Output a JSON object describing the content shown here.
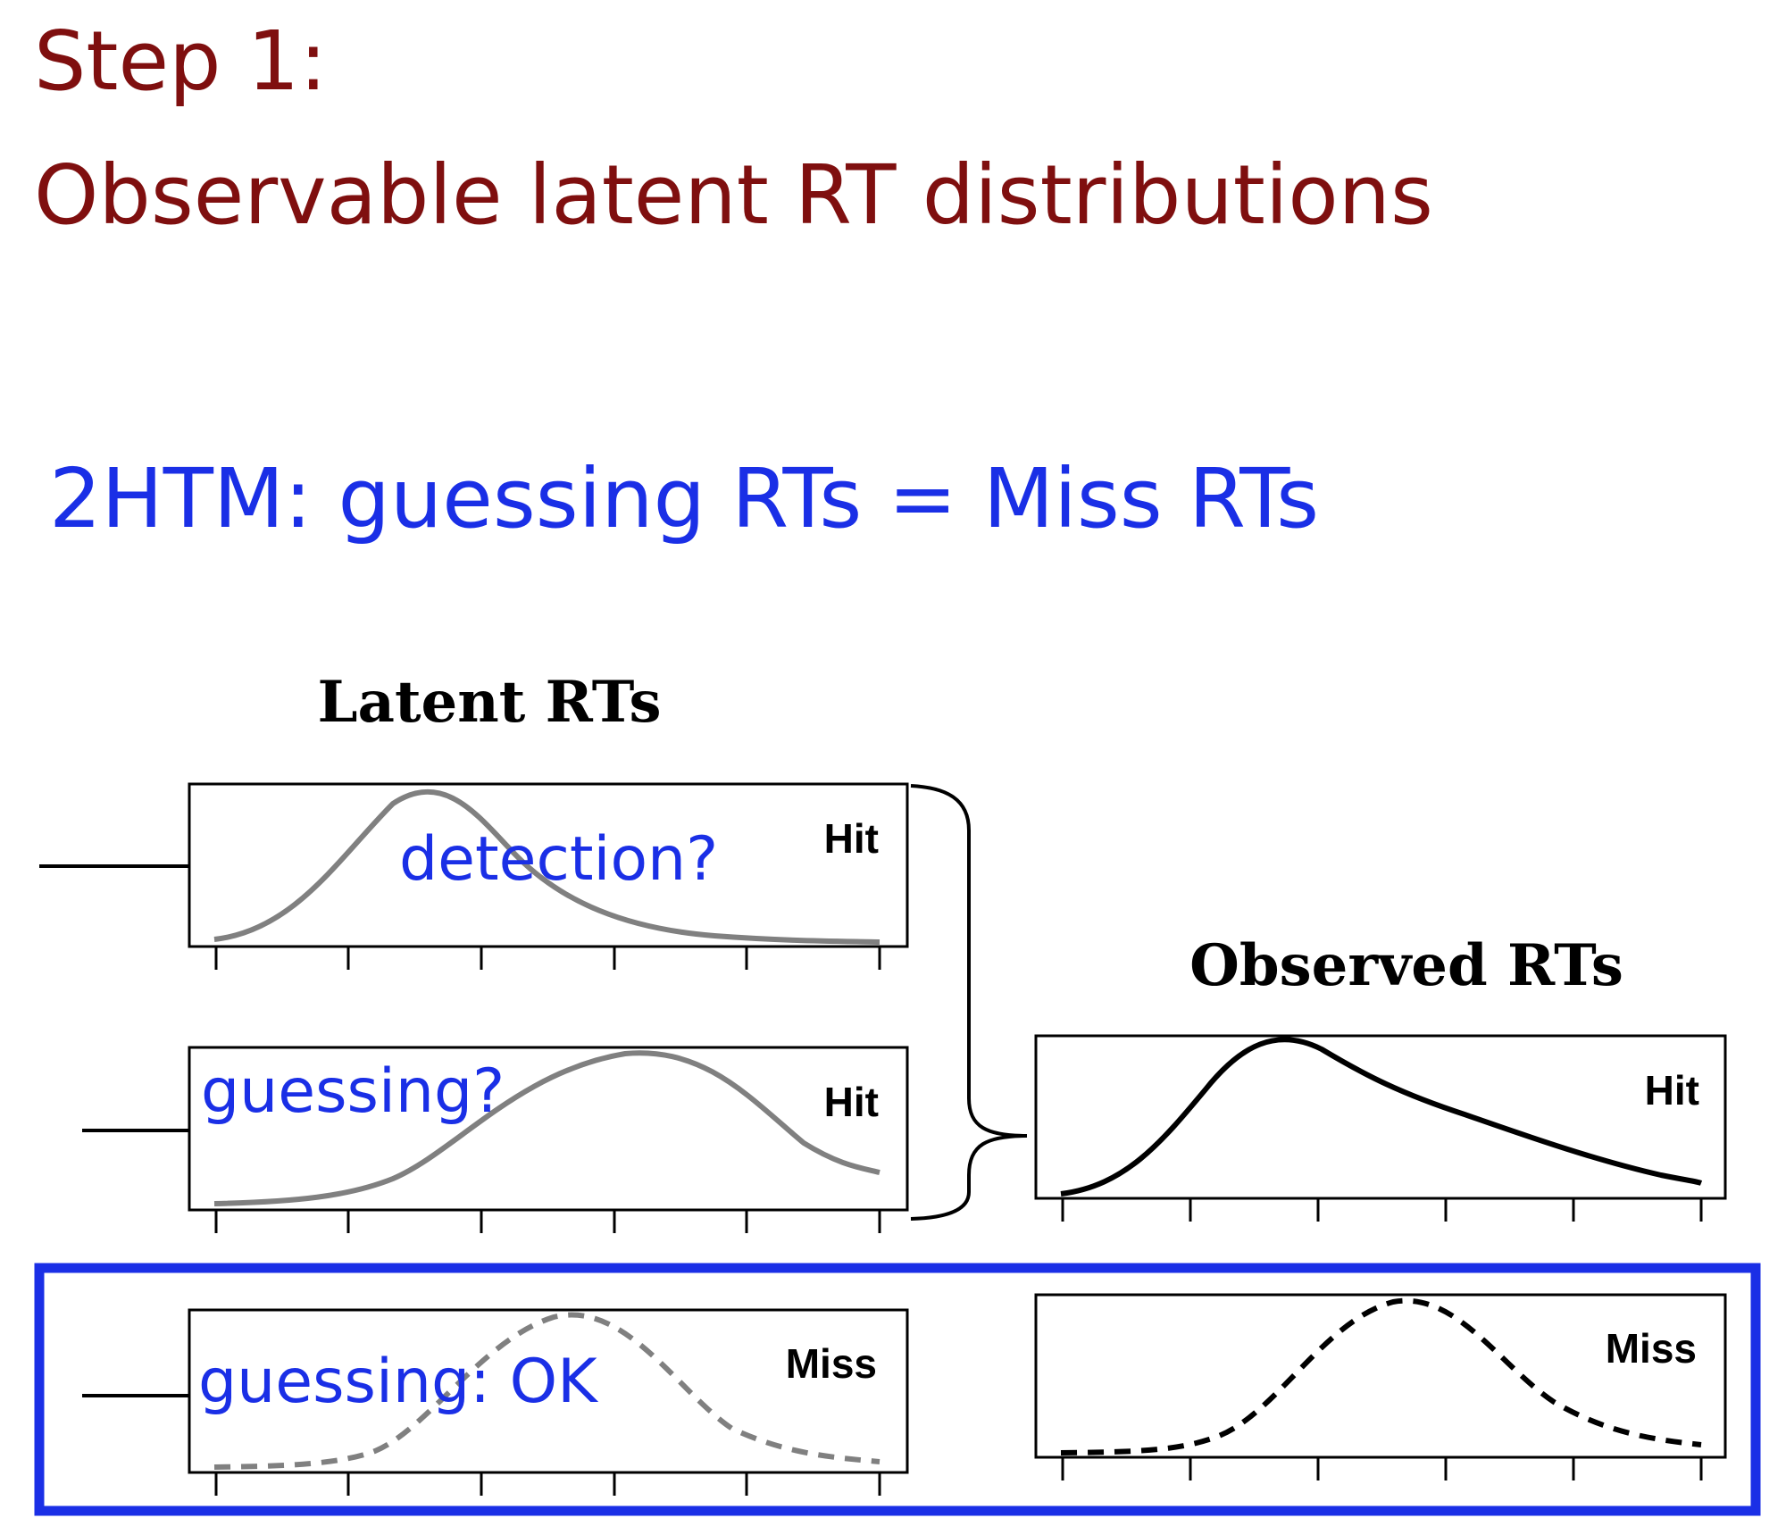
{
  "slide": {
    "title_line1": "Step 1:",
    "title_line2": "Observable latent RT distributions",
    "subtitle": "2HTM: guessing RTs = Miss RTs",
    "title_color": "#7f0f0f",
    "accent_color": "#1a2fe6"
  },
  "diagram": {
    "latent_heading": "Latent RTs",
    "observed_heading": "Observed RTs",
    "panels": [
      {
        "id": "latent-detection-hit",
        "label": "Hit",
        "annotation": "detection?",
        "curve": "gray-solid"
      },
      {
        "id": "latent-guessing-hit",
        "label": "Hit",
        "annotation": "guessing?",
        "curve": "gray-solid"
      },
      {
        "id": "latent-guessing-miss",
        "label": "Miss",
        "annotation": "guessing: OK",
        "curve": "gray-dashed"
      },
      {
        "id": "observed-hit",
        "label": "Hit",
        "annotation": "",
        "curve": "black-solid"
      },
      {
        "id": "observed-miss",
        "label": "Miss",
        "annotation": "",
        "curve": "black-dashed"
      }
    ]
  }
}
